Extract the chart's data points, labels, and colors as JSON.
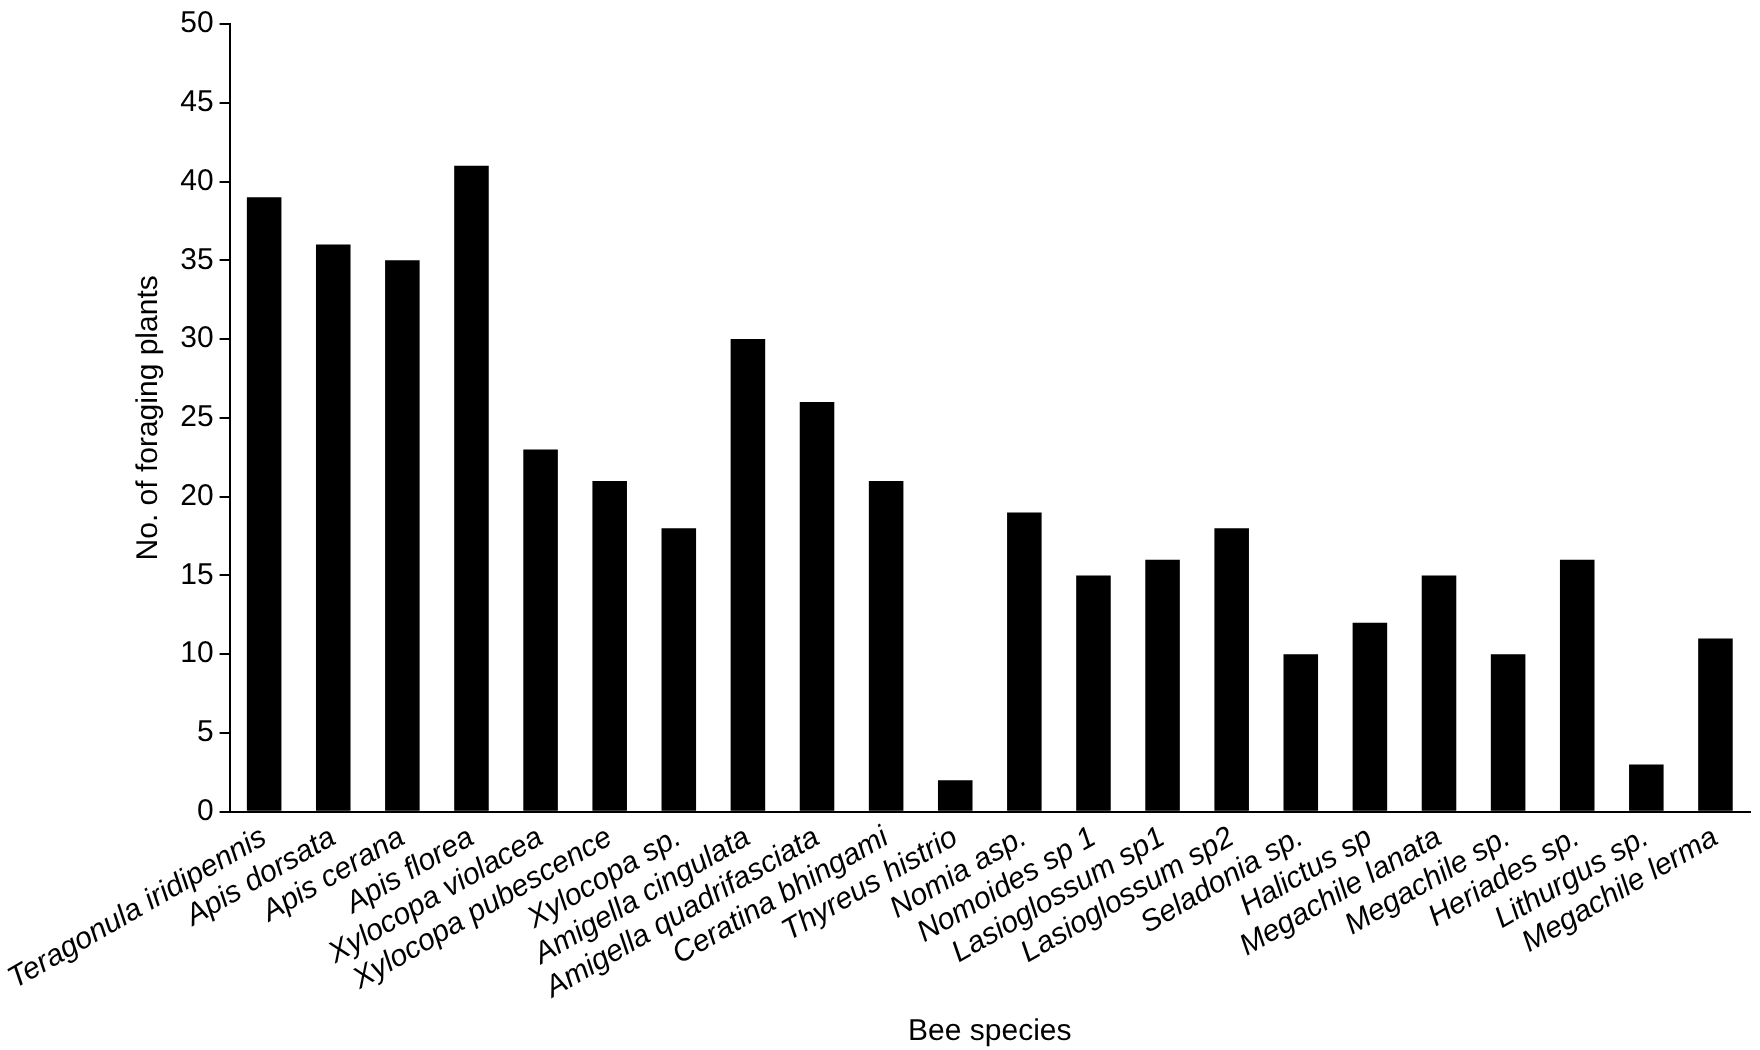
{
  "chart_data": {
    "type": "bar",
    "xlabel": "Bee species",
    "ylabel": "No. of foraging plants",
    "categories": [
      "Teragonula iridipennis",
      "Apis dorsata",
      "Apis cerana",
      "Apis florea",
      "Xylocopa violacea",
      "Xylocopa pubescence",
      "Xylocopa sp.",
      "Amigella cingulata",
      "Amigella quadrifasciata",
      "Ceratina bhingami",
      "Thyreus histrio",
      "Nomia asp.",
      "Nomoides sp 1",
      "Lasioglossum sp1",
      "Lasioglossum sp2",
      "Seladonia sp.",
      "Halictus sp",
      "Megachile lanata",
      "Megachile sp.",
      "Heriades sp.",
      "Lithurgus sp.",
      "Megachile lerma"
    ],
    "values": [
      39,
      36,
      35,
      41,
      23,
      21,
      18,
      30,
      26,
      21,
      2,
      19,
      15,
      16,
      18,
      10,
      12,
      15,
      10,
      16,
      3,
      11
    ],
    "color": "#000000",
    "ylim": [
      0,
      50
    ],
    "yticks": [
      0,
      5,
      10,
      15,
      20,
      25,
      30,
      35,
      40,
      45,
      50
    ],
    "grid": false,
    "legend": false
  }
}
